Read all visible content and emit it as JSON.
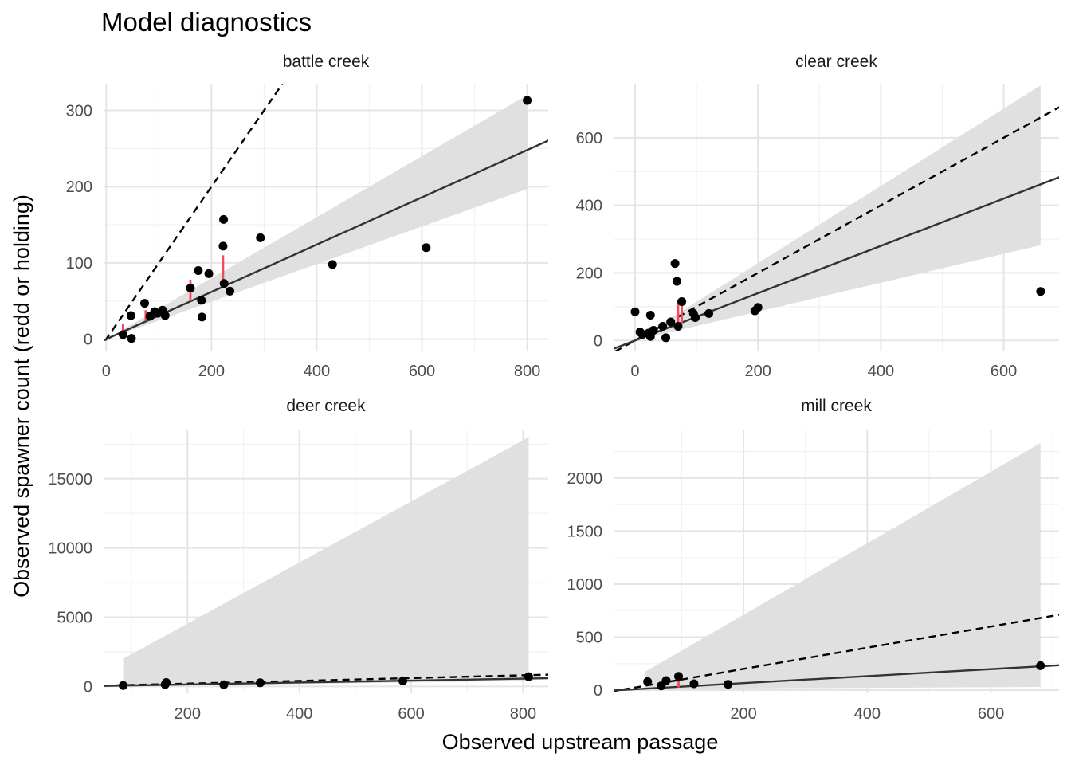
{
  "title": "Model diagnostics",
  "xlabel": "Observed upstream passage",
  "ylabel": "Observed spawner count (redd or holding)",
  "colors": {
    "point": "#000000",
    "fit_line": "#333333",
    "ribbon": "#e0e0e0",
    "residual": "#f8485e",
    "grid_major": "#e5e5e5",
    "grid_minor": "#f2f2f2"
  },
  "chart_data": [
    {
      "type": "scatter",
      "facet": "battle creek",
      "xlim": [
        -5,
        840
      ],
      "ylim": [
        -15,
        335
      ],
      "x_ticks": [
        0,
        200,
        400,
        600,
        800
      ],
      "y_ticks": [
        0,
        100,
        200,
        300
      ],
      "fit_slope": 0.31,
      "reference_slope": 1.0,
      "ribbon": {
        "x": [
          0,
          800
        ],
        "lower": [
          0,
          197
        ],
        "upper": [
          0,
          320
        ]
      },
      "points": [
        {
          "x": 32,
          "y": 6
        },
        {
          "x": 47,
          "y": 31
        },
        {
          "x": 48,
          "y": 1
        },
        {
          "x": 73,
          "y": 47
        },
        {
          "x": 83,
          "y": 30
        },
        {
          "x": 92,
          "y": 36
        },
        {
          "x": 98,
          "y": 34
        },
        {
          "x": 107,
          "y": 38
        },
        {
          "x": 112,
          "y": 31
        },
        {
          "x": 160,
          "y": 67
        },
        {
          "x": 175,
          "y": 90
        },
        {
          "x": 181,
          "y": 51
        },
        {
          "x": 182,
          "y": 29
        },
        {
          "x": 195,
          "y": 86
        },
        {
          "x": 222,
          "y": 122
        },
        {
          "x": 223,
          "y": 157
        },
        {
          "x": 224,
          "y": 73
        },
        {
          "x": 235,
          "y": 63
        },
        {
          "x": 293,
          "y": 133
        },
        {
          "x": 430,
          "y": 98
        },
        {
          "x": 608,
          "y": 120
        },
        {
          "x": 800,
          "y": 313
        }
      ],
      "residuals": [
        {
          "x": 32,
          "y0": 10,
          "y1": 20
        },
        {
          "x": 75,
          "y0": 24,
          "y1": 38
        },
        {
          "x": 160,
          "y0": 50,
          "y1": 78
        },
        {
          "x": 222,
          "y0": 70,
          "y1": 110
        }
      ]
    },
    {
      "type": "scatter",
      "facet": "clear creek",
      "xlim": [
        -35,
        690
      ],
      "ylim": [
        -30,
        760
      ],
      "x_ticks": [
        0,
        200,
        400,
        600
      ],
      "y_ticks": [
        0,
        200,
        400,
        600
      ],
      "fit_slope": 0.7,
      "reference_slope": 1.0,
      "ribbon": {
        "x": [
          0,
          660
        ],
        "lower": [
          0,
          282
        ],
        "upper": [
          0,
          755
        ]
      },
      "points": [
        {
          "x": 0,
          "y": 85
        },
        {
          "x": 8,
          "y": 25
        },
        {
          "x": 12,
          "y": 18
        },
        {
          "x": 22,
          "y": 22
        },
        {
          "x": 25,
          "y": 75
        },
        {
          "x": 25,
          "y": 12
        },
        {
          "x": 30,
          "y": 30
        },
        {
          "x": 45,
          "y": 42
        },
        {
          "x": 50,
          "y": 8
        },
        {
          "x": 58,
          "y": 55
        },
        {
          "x": 65,
          "y": 228
        },
        {
          "x": 68,
          "y": 175
        },
        {
          "x": 70,
          "y": 42
        },
        {
          "x": 76,
          "y": 115
        },
        {
          "x": 95,
          "y": 80
        },
        {
          "x": 98,
          "y": 68
        },
        {
          "x": 120,
          "y": 80
        },
        {
          "x": 195,
          "y": 88
        },
        {
          "x": 200,
          "y": 98
        },
        {
          "x": 660,
          "y": 145
        }
      ],
      "residuals": [
        {
          "x": 25,
          "y0": 15,
          "y1": 40
        },
        {
          "x": 70,
          "y0": 45,
          "y1": 115
        },
        {
          "x": 76,
          "y0": 50,
          "y1": 112
        }
      ]
    },
    {
      "type": "scatter",
      "facet": "deer creek",
      "xlim": [
        50,
        845
      ],
      "ylim": [
        -500,
        18500
      ],
      "x_ticks": [
        200,
        400,
        600,
        800
      ],
      "y_ticks": [
        0,
        5000,
        10000,
        15000
      ],
      "fit_slope": 0.7,
      "reference_slope": 1.0,
      "ribbon": {
        "x": [
          85,
          810
        ],
        "lower": [
          0,
          400
        ],
        "upper": [
          2000,
          18000
        ]
      },
      "points": [
        {
          "x": 85,
          "y": 60
        },
        {
          "x": 160,
          "y": 130
        },
        {
          "x": 162,
          "y": 280
        },
        {
          "x": 265,
          "y": 120
        },
        {
          "x": 330,
          "y": 260
        },
        {
          "x": 585,
          "y": 400
        },
        {
          "x": 810,
          "y": 700
        }
      ],
      "residuals": []
    },
    {
      "type": "scatter",
      "facet": "mill creek",
      "xlim": [
        -10,
        710
      ],
      "ylim": [
        -30,
        2450
      ],
      "x_ticks": [
        200,
        400,
        600
      ],
      "y_ticks": [
        0,
        500,
        1000,
        1500,
        2000
      ],
      "fit_slope": 0.33,
      "reference_slope": 1.0,
      "ribbon": {
        "x": [
          40,
          680
        ],
        "lower": [
          10,
          30
        ],
        "upper": [
          170,
          2330
        ]
      },
      "points": [
        {
          "x": 45,
          "y": 80
        },
        {
          "x": 67,
          "y": 40
        },
        {
          "x": 75,
          "y": 90
        },
        {
          "x": 95,
          "y": 130
        },
        {
          "x": 120,
          "y": 60
        },
        {
          "x": 175,
          "y": 55
        },
        {
          "x": 680,
          "y": 230
        }
      ],
      "residuals": [
        {
          "x": 95,
          "y0": 25,
          "y1": 120
        }
      ]
    }
  ]
}
